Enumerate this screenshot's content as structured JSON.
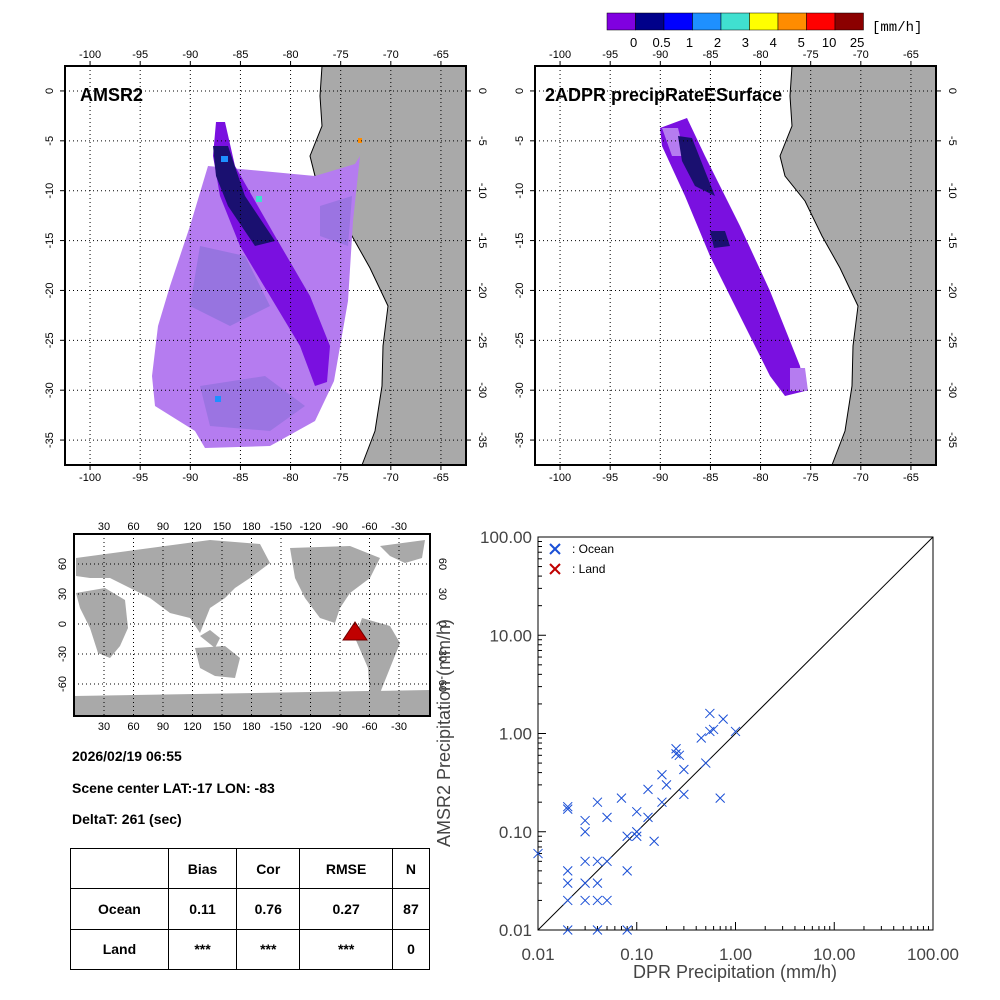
{
  "colorbar": {
    "unit": "[mm/h]",
    "labels": [
      "0",
      "0.5",
      "1",
      "2",
      "3",
      "4",
      "5",
      "10",
      "25"
    ],
    "colors": [
      "#8000e0",
      "#00008a",
      "#0000ff",
      "#1e90ff",
      "#40e0d0",
      "#ffff00",
      "#ff8c00",
      "#ff0000",
      "#8b0000"
    ]
  },
  "map_axes": {
    "lon_ticks": [
      "-100",
      "-95",
      "-90",
      "-85",
      "-80",
      "-75",
      "-70",
      "-65"
    ],
    "lat_ticks": [
      "0",
      "-5",
      "-10",
      "-15",
      "-20",
      "-25",
      "-30",
      "-35"
    ]
  },
  "panels": {
    "amsr2_title": "AMSR2",
    "dpr_title": "2ADPR precipRateESurface"
  },
  "world_map": {
    "top_ticks": [
      "30",
      "60",
      "90",
      "120",
      "150",
      "180",
      "-150",
      "-120",
      "-90",
      "-60",
      "-30"
    ],
    "lat_ticks": [
      "60",
      "30",
      "0",
      "-30",
      "-60"
    ],
    "marker": "scene-location-triangle"
  },
  "info": {
    "datetime": "2026/02/19 06:55",
    "scene_center": "Scene center LAT:-17   LON: -83",
    "delta_t": "DeltaT:  261 (sec)"
  },
  "stats_table": {
    "headers": [
      "",
      "Bias",
      "Cor",
      "RMSE",
      "N"
    ],
    "rows": [
      {
        "label": "Ocean",
        "bias": "0.11",
        "cor": "0.76",
        "rmse": "0.27",
        "n": "87"
      },
      {
        "label": "Land",
        "bias": "***",
        "cor": "***",
        "rmse": "***",
        "n": "0"
      }
    ]
  },
  "chart_data": {
    "type": "scatter",
    "xscale": "log",
    "yscale": "log",
    "xlim": [
      0.01,
      100
    ],
    "ylim": [
      0.01,
      100
    ],
    "xlabel": "DPR Precipitation (mm/h)",
    "ylabel": "AMSR2 Precipitation (mm/h)",
    "ticks": [
      0.01,
      0.1,
      1,
      10,
      100
    ],
    "tick_labels": [
      "0.01",
      "0.10",
      "1.00",
      "10.00",
      "100.00"
    ],
    "legend": [
      {
        "name": ": Ocean",
        "color": "#1a4fd6"
      },
      {
        "name": ": Land",
        "color": "#c00000"
      }
    ],
    "series": [
      {
        "name": "Ocean",
        "color": "#1a4fd6",
        "points": [
          [
            0.01,
            0.06
          ],
          [
            0.02,
            0.17
          ],
          [
            0.02,
            0.18
          ],
          [
            0.02,
            0.04
          ],
          [
            0.02,
            0.03
          ],
          [
            0.02,
            0.01
          ],
          [
            0.02,
            0.02
          ],
          [
            0.03,
            0.13
          ],
          [
            0.03,
            0.1
          ],
          [
            0.03,
            0.05
          ],
          [
            0.03,
            0.03
          ],
          [
            0.03,
            0.02
          ],
          [
            0.04,
            0.2
          ],
          [
            0.04,
            0.05
          ],
          [
            0.04,
            0.03
          ],
          [
            0.04,
            0.02
          ],
          [
            0.04,
            0.01
          ],
          [
            0.05,
            0.14
          ],
          [
            0.05,
            0.05
          ],
          [
            0.05,
            0.02
          ],
          [
            0.07,
            0.22
          ],
          [
            0.08,
            0.09
          ],
          [
            0.08,
            0.04
          ],
          [
            0.08,
            0.01
          ],
          [
            0.1,
            0.16
          ],
          [
            0.1,
            0.1
          ],
          [
            0.1,
            0.09
          ],
          [
            0.13,
            0.27
          ],
          [
            0.13,
            0.14
          ],
          [
            0.15,
            0.08
          ],
          [
            0.18,
            0.38
          ],
          [
            0.18,
            0.2
          ],
          [
            0.2,
            0.3
          ],
          [
            0.25,
            0.7
          ],
          [
            0.25,
            0.62
          ],
          [
            0.27,
            0.6
          ],
          [
            0.3,
            0.43
          ],
          [
            0.3,
            0.24
          ],
          [
            0.45,
            0.9
          ],
          [
            0.5,
            0.5
          ],
          [
            0.55,
            1.6
          ],
          [
            0.55,
            1.05
          ],
          [
            0.6,
            1.1
          ],
          [
            0.7,
            0.22
          ],
          [
            0.75,
            1.4
          ],
          [
            1.0,
            1.05
          ]
        ]
      },
      {
        "name": "Land",
        "color": "#c00000",
        "points": []
      }
    ],
    "reference_line": "1:1"
  }
}
